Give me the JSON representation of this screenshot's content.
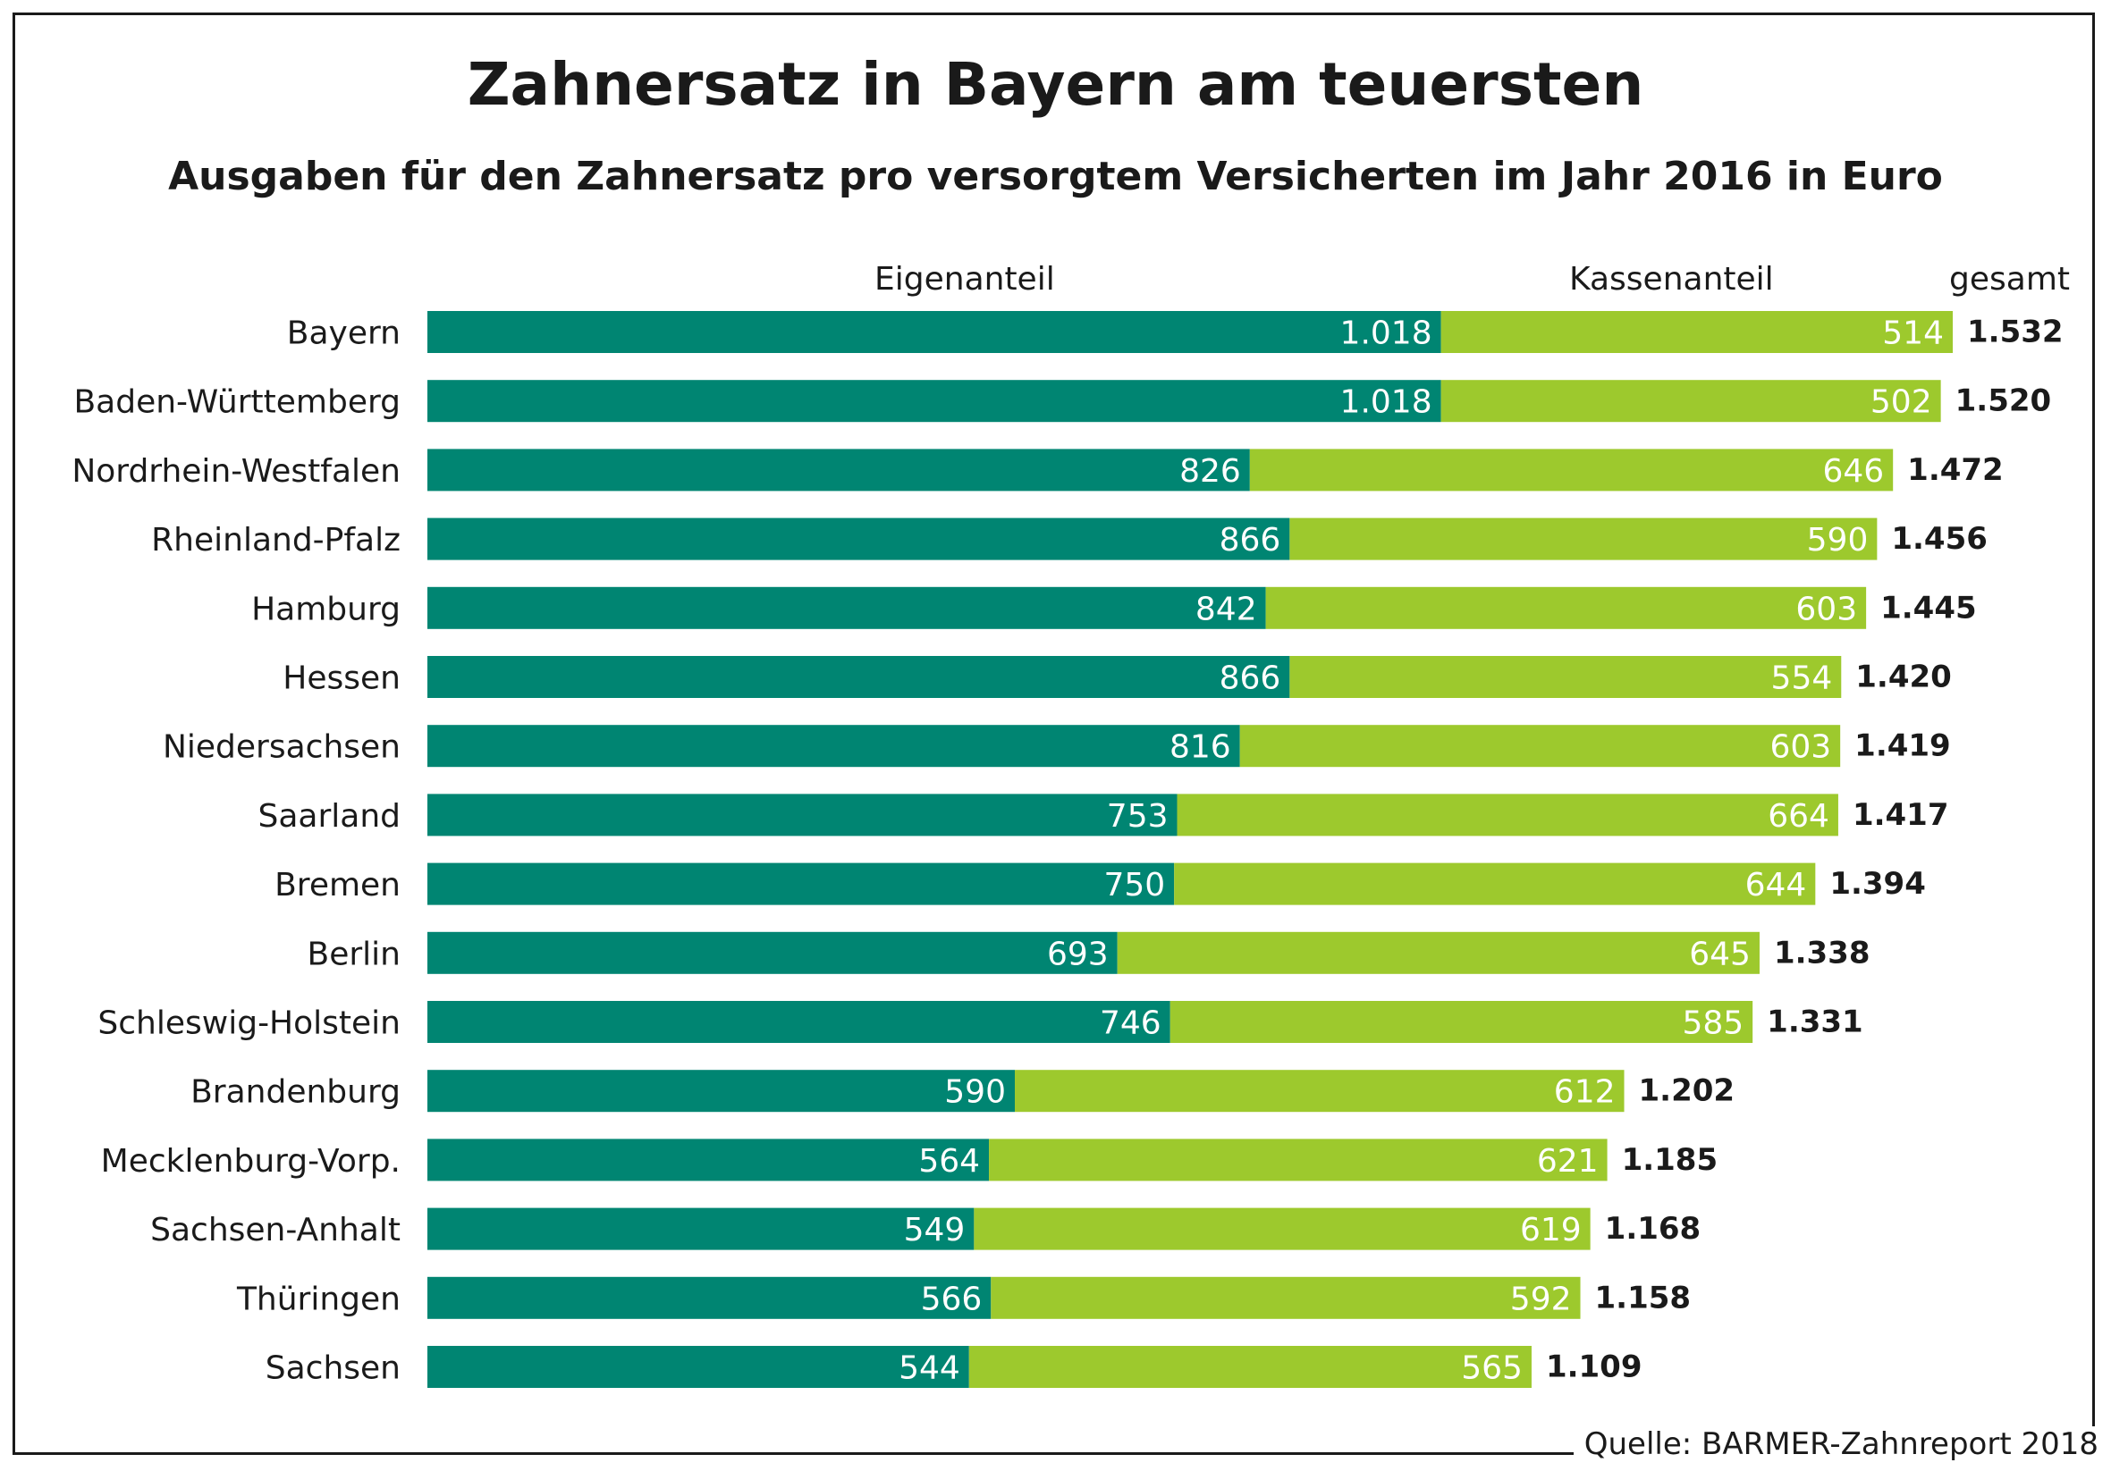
{
  "title": "Zahnersatz in Bayern am teuersten",
  "subtitle": "Ausgaben für den Zahnersatz pro versorgtem Versicherten im Jahr 2016 in Euro",
  "column_headers": {
    "own": "Eigenanteil",
    "insurance": "Kassenanteil",
    "total": "gesamt"
  },
  "source": "Quelle: BARMER-Zahnreport 2018",
  "colors": {
    "own": "#008572",
    "insurance": "#9dc92d",
    "text_dark": "#1a1a1a",
    "label_on_bar": "#ffffff"
  },
  "chart_data": {
    "type": "bar",
    "orientation": "horizontal",
    "stacked": true,
    "title": "Zahnersatz in Bayern am teuersten",
    "subtitle": "Ausgaben für den Zahnersatz pro versorgtem Versicherten im Jahr 2016 in Euro",
    "categories": [
      "Bayern",
      "Baden-Württemberg",
      "Nordrhein-Westfalen",
      "Rheinland-Pfalz",
      "Hamburg",
      "Hessen",
      "Niedersachsen",
      "Saarland",
      "Bremen",
      "Berlin",
      "Schleswig-Holstein",
      "Brandenburg",
      "Mecklenburg-Vorp.",
      "Sachsen-Anhalt",
      "Thüringen",
      "Sachsen"
    ],
    "series": [
      {
        "name": "Eigenanteil",
        "values": [
          1018,
          1018,
          826,
          866,
          842,
          866,
          816,
          753,
          750,
          693,
          746,
          590,
          564,
          549,
          566,
          544
        ],
        "labels": [
          "1.018",
          "1.018",
          "826",
          "866",
          "842",
          "866",
          "816",
          "753",
          "750",
          "693",
          "746",
          "590",
          "564",
          "549",
          "566",
          "544"
        ]
      },
      {
        "name": "Kassenanteil",
        "values": [
          514,
          502,
          646,
          590,
          603,
          554,
          603,
          664,
          644,
          645,
          585,
          612,
          621,
          619,
          592,
          565
        ],
        "labels": [
          "514",
          "502",
          "646",
          "590",
          "603",
          "554",
          "603",
          "664",
          "644",
          "645",
          "585",
          "612",
          "621",
          "619",
          "592",
          "565"
        ]
      }
    ],
    "totals": {
      "name": "gesamt",
      "values": [
        1532,
        1520,
        1472,
        1456,
        1445,
        1420,
        1419,
        1417,
        1394,
        1338,
        1331,
        1202,
        1185,
        1168,
        1158,
        1109
      ],
      "labels": [
        "1.532",
        "1.520",
        "1.472",
        "1.456",
        "1.445",
        "1.420",
        "1.419",
        "1.417",
        "1.394",
        "1.338",
        "1.331",
        "1.202",
        "1.185",
        "1.168",
        "1.158",
        "1.109"
      ]
    },
    "xlim": [
      0,
      1532
    ],
    "grid": false,
    "legend": "column headers above bars"
  }
}
